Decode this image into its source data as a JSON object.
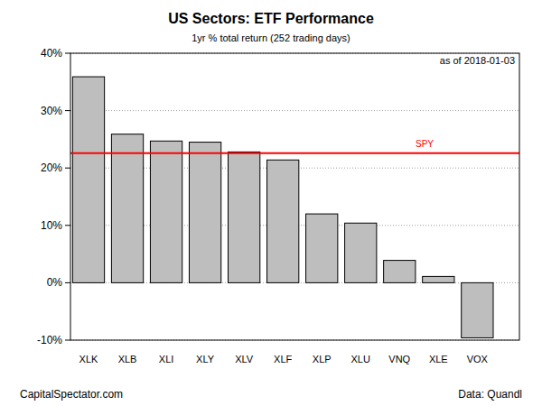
{
  "chart_data": {
    "type": "bar",
    "title": "US Sectors: ETF Performance",
    "subtitle": "1yr % total return (252 trading days)",
    "annotation": "as of  2018-01-03",
    "caption_left": "CapitalSpectator.com",
    "caption_right": "Data: Quandl",
    "categories": [
      "XLK",
      "XLB",
      "XLI",
      "XLY",
      "XLV",
      "XLF",
      "XLP",
      "XLU",
      "VNQ",
      "XLE",
      "VOX"
    ],
    "values": [
      35.9,
      25.9,
      24.7,
      24.5,
      22.8,
      21.4,
      12.0,
      10.4,
      3.9,
      1.1,
      -9.6
    ],
    "color": "#bebebe",
    "reference_line": {
      "label": "SPY",
      "value": 22.6,
      "color": "#ff0000"
    },
    "ylim": [
      -10,
      40
    ],
    "yticks": [
      {
        "value": -10,
        "label": "-10%"
      },
      {
        "value": 0,
        "label": "0%"
      },
      {
        "value": 10,
        "label": "10%"
      },
      {
        "value": 20,
        "label": "20%"
      },
      {
        "value": 30,
        "label": "30%"
      },
      {
        "value": 40,
        "label": "40%"
      }
    ],
    "grid": true
  }
}
